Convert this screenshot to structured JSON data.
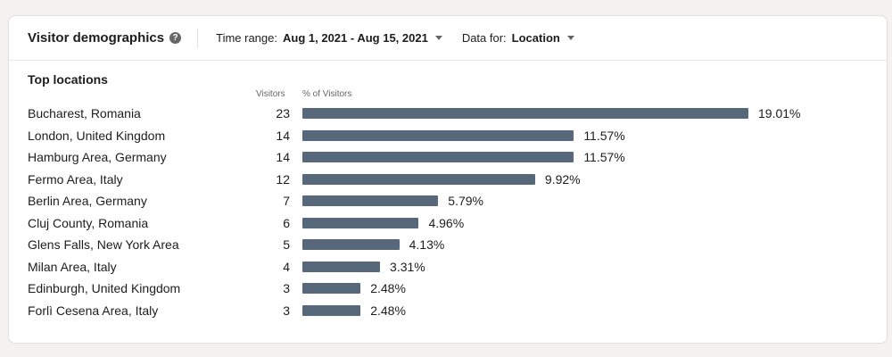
{
  "header": {
    "title": "Visitor demographics",
    "help_icon": "question-circle-icon",
    "time_range_label": "Time range:",
    "time_range_value": "Aug 1, 2021 - Aug 15, 2021",
    "data_for_label": "Data for:",
    "data_for_value": "Location"
  },
  "section": {
    "title": "Top locations",
    "col_visitors": "Visitors",
    "col_pct": "% of Visitors"
  },
  "colors": {
    "bar": "#56687a"
  },
  "chart_data": {
    "type": "bar",
    "categories": [
      "Bucharest, Romania",
      "London, United Kingdom",
      "Hamburg Area, Germany",
      "Fermo Area, Italy",
      "Berlin Area, Germany",
      "Cluj County, Romania",
      "Glens Falls, New York Area",
      "Milan Area, Italy",
      "Edinburgh, United Kingdom",
      "Forlì Cesena Area, Italy"
    ],
    "visitors": [
      23,
      14,
      14,
      12,
      7,
      6,
      5,
      4,
      3,
      3
    ],
    "values": [
      19.01,
      11.57,
      11.57,
      9.92,
      5.79,
      4.96,
      4.13,
      3.31,
      2.48,
      2.48
    ],
    "labels": [
      "19.01%",
      "11.57%",
      "11.57%",
      "9.92%",
      "5.79%",
      "4.96%",
      "4.13%",
      "3.31%",
      "2.48%",
      "2.48%"
    ]
  }
}
